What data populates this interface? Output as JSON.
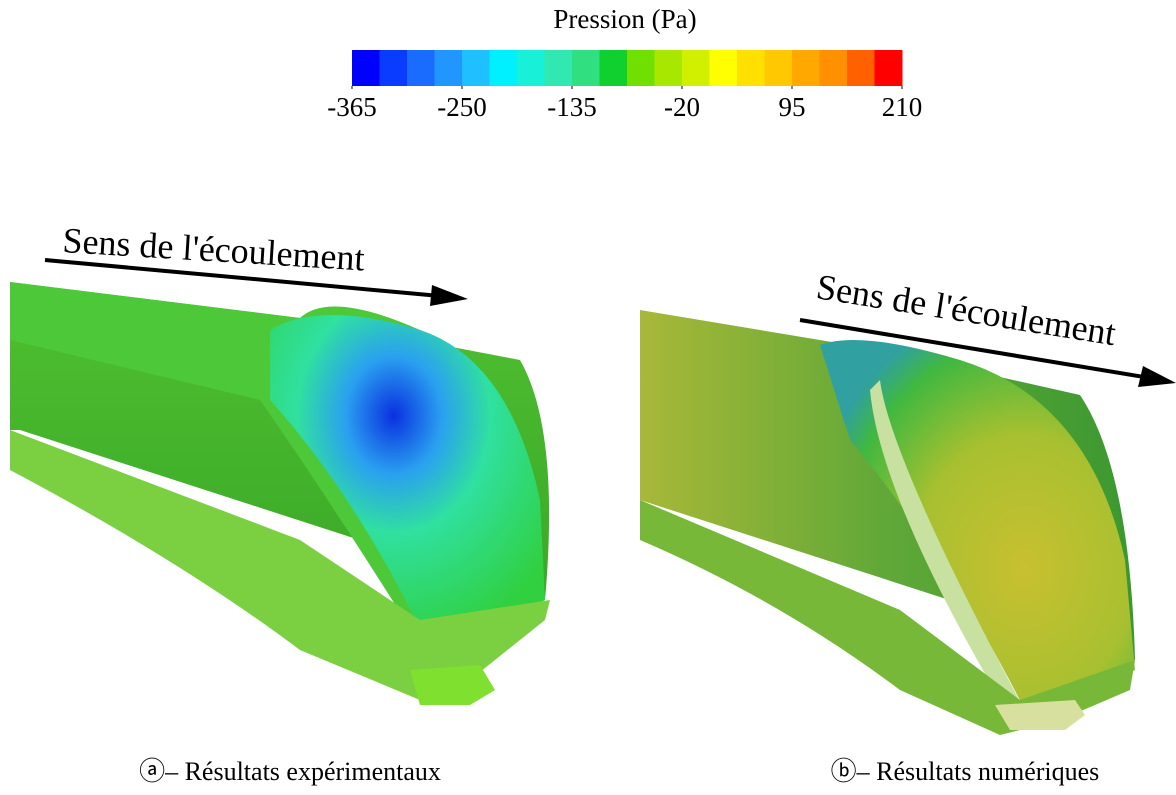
{
  "colorbar": {
    "title": "Pression (Pa)",
    "lim": [
      -365,
      210
    ],
    "ticks": [
      -365,
      -250,
      -135,
      -20,
      95,
      210
    ],
    "colors": [
      "#0000ff",
      "#0a3cff",
      "#1a6cff",
      "#2196ff",
      "#1ec0ff",
      "#00f0ff",
      "#18f0d8",
      "#30e8b0",
      "#30e080",
      "#10d030",
      "#70e000",
      "#a8e800",
      "#d0f000",
      "#ffff00",
      "#ffe000",
      "#ffc800",
      "#ffa800",
      "#ff9000",
      "#ff6000",
      "#ff0000"
    ]
  },
  "panels": [
    {
      "flow_label": "Sens de l'écoulement",
      "caption": "ⓐ– Résultats expérimentaux"
    },
    {
      "flow_label": "Sens de l'écoulement",
      "caption": "ⓑ– Résultats numériques"
    }
  ]
}
